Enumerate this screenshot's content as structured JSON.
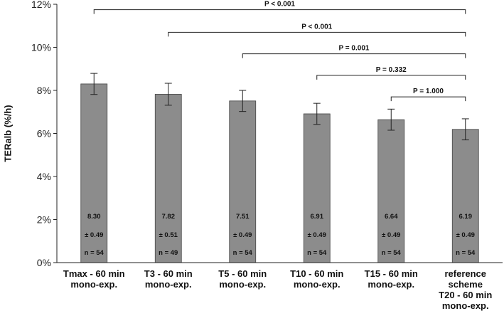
{
  "chart_data": {
    "type": "bar",
    "title": "",
    "xlabel": "",
    "ylabel": "TERalb (%/h)",
    "ylim": [
      0,
      12
    ],
    "yticks": [
      "0%",
      "2%",
      "4%",
      "6%",
      "8%",
      "10%",
      "12%"
    ],
    "grid": false,
    "bar_color": "#8c8c8c",
    "categories": [
      [
        "Tmax - 60 min",
        "mono-exp."
      ],
      [
        "T3 - 60 min",
        "mono-exp."
      ],
      [
        "T5 - 60 min",
        "mono-exp."
      ],
      [
        "T10 - 60 min",
        "mono-exp."
      ],
      [
        "T15 - 60 min",
        "mono-exp."
      ],
      [
        "reference",
        "scheme",
        "T20 - 60 min",
        "mono-exp."
      ]
    ],
    "values": [
      8.3,
      7.82,
      7.51,
      6.91,
      6.64,
      6.19
    ],
    "errors": [
      0.49,
      0.51,
      0.49,
      0.49,
      0.49,
      0.49
    ],
    "bar_labels": {
      "mean": [
        "8.30",
        "7.82",
        "7.51",
        "6.91",
        "6.64",
        "6.19"
      ],
      "sd": [
        "± 0.49",
        "± 0.51",
        "± 0.49",
        "± 0.49",
        "± 0.49",
        "± 0.49"
      ],
      "n": [
        "n = 54",
        "n = 49",
        "n = 54",
        "n = 54",
        "n = 54",
        "n = 54"
      ]
    },
    "comparisons": [
      {
        "from": 0,
        "to": 5,
        "label": "P < 0.001",
        "y": 11.75
      },
      {
        "from": 1,
        "to": 5,
        "label": "P < 0.001",
        "y": 10.7
      },
      {
        "from": 2,
        "to": 5,
        "label": "P = 0.001",
        "y": 9.7
      },
      {
        "from": 3,
        "to": 5,
        "label": "P = 0.332",
        "y": 8.7
      },
      {
        "from": 4,
        "to": 5,
        "label": "P = 1.000",
        "y": 7.7
      }
    ]
  }
}
